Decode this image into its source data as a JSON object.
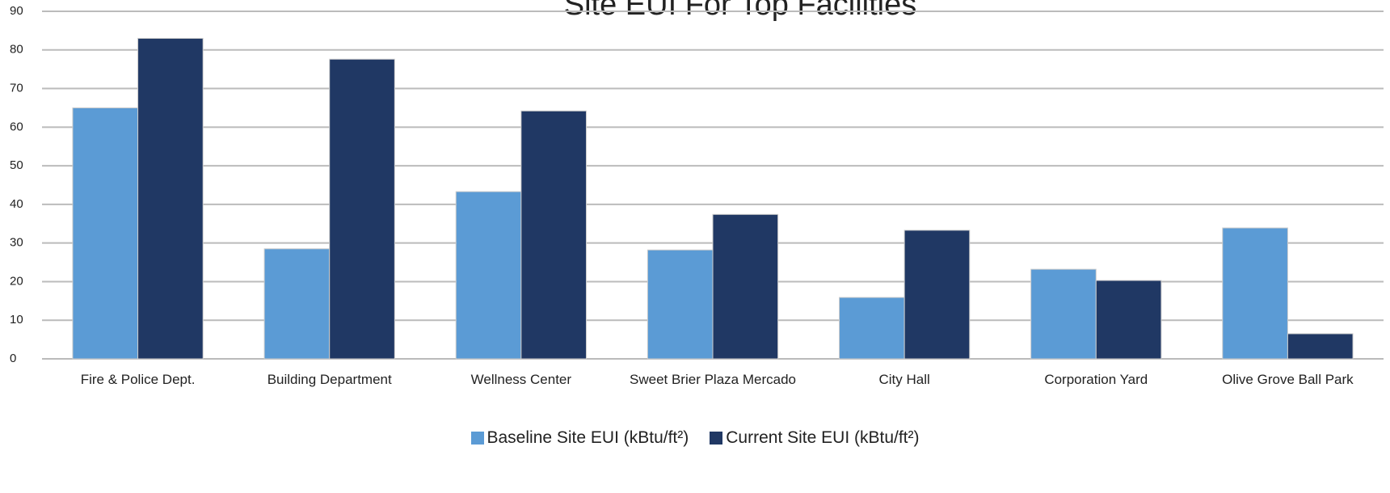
{
  "chart_data": {
    "type": "bar",
    "title": "Site EUI For Top Facilities",
    "categories": [
      "Fire & Police Dept.",
      "Building Department",
      "Wellness Center",
      "Sweet Brier Plaza Mercado",
      "City Hall",
      "Corporation Yard",
      "Olive Grove Ball Park"
    ],
    "series": [
      {
        "name": "Baseline Site EUI (kBtu/ft²)",
        "color": "#5b9bd5",
        "values": [
          65,
          28.5,
          43.3,
          28.2,
          15.9,
          23.2,
          33.9
        ]
      },
      {
        "name": "Current Site EUI (kBtu/ft²)",
        "color": "#203864",
        "values": [
          83,
          77.6,
          64.2,
          37.4,
          33.3,
          20.3,
          6.5
        ]
      }
    ],
    "ylim": [
      0,
      90
    ],
    "yticks": [
      0,
      10,
      20,
      30,
      40,
      50,
      60,
      70,
      80,
      90
    ],
    "grid": true,
    "legend": "bottom"
  }
}
